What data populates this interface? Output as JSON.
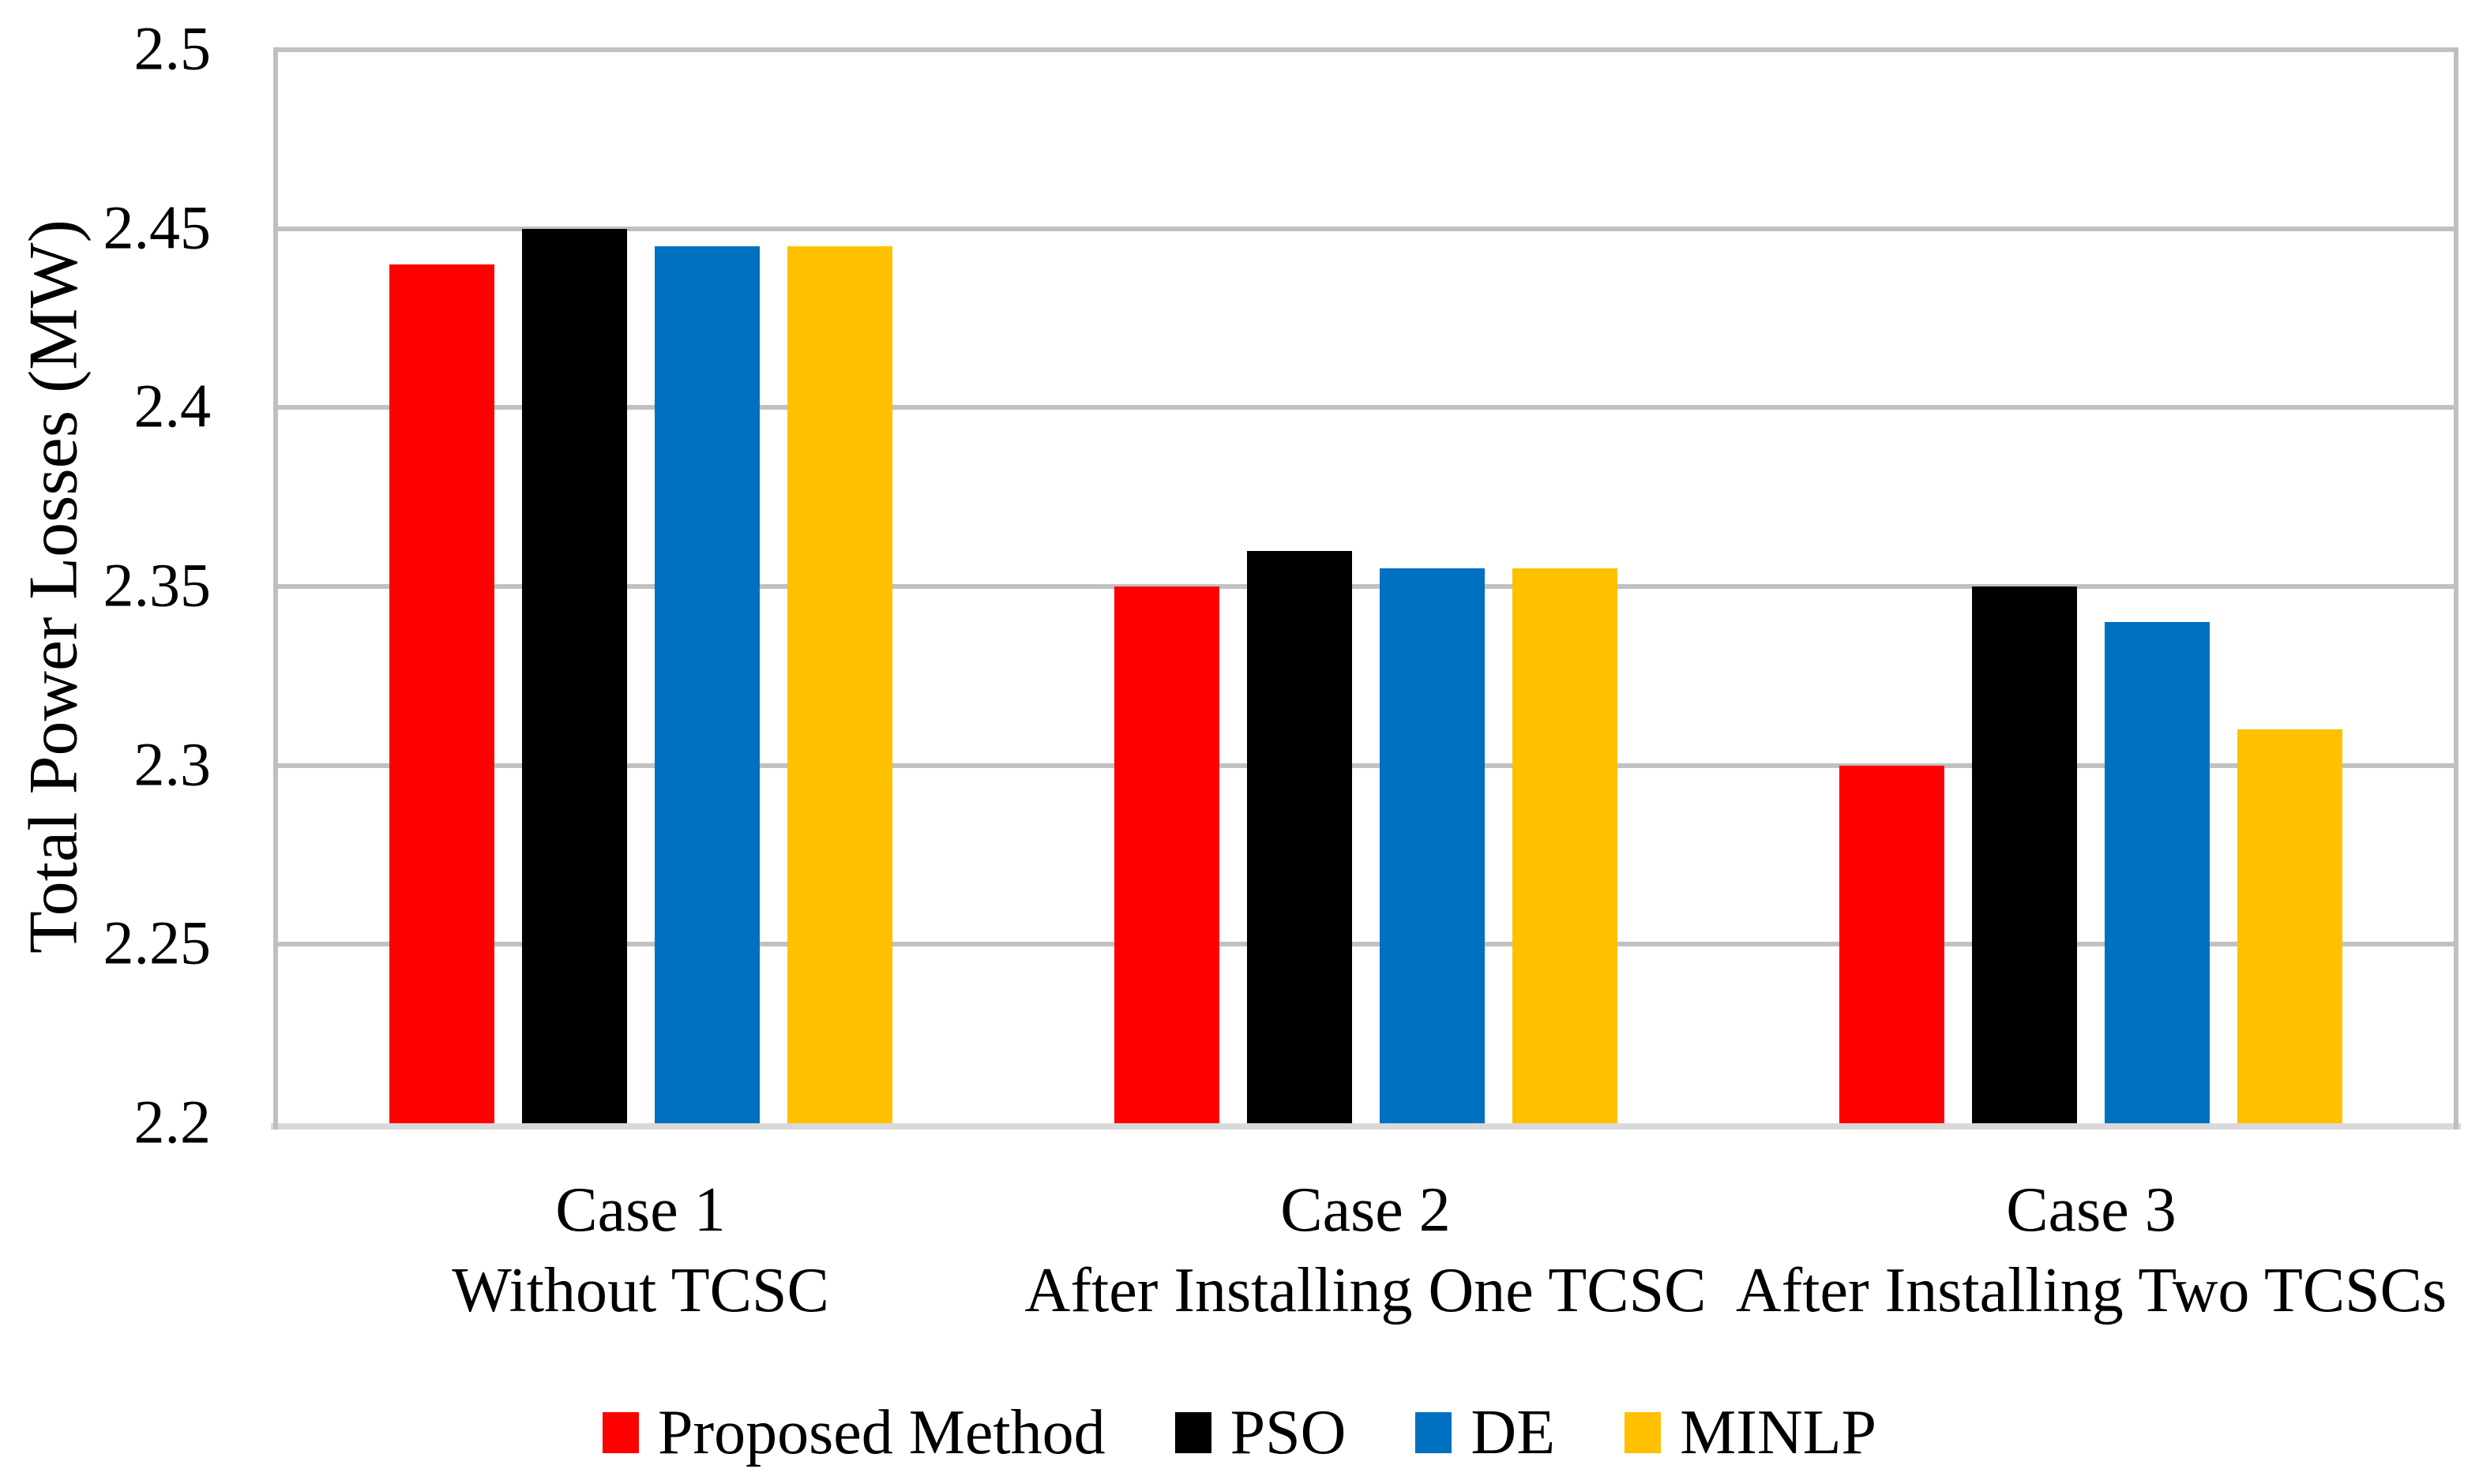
{
  "chart_data": {
    "type": "bar",
    "title": "",
    "xlabel": "",
    "ylabel": "Total Power Losses (MW)",
    "ylim": [
      2.2,
      2.5
    ],
    "ytick_step": 0.05,
    "yticks": [
      "2.5",
      "2.45",
      "2.4",
      "2.35",
      "2.3",
      "2.25",
      "2.2"
    ],
    "grid": true,
    "legend_position": "bottom-center",
    "categories": [
      {
        "label": "Case 1",
        "sublabel": "Without TCSC"
      },
      {
        "label": "Case 2",
        "sublabel": "After Installing One TCSC"
      },
      {
        "label": "Case 3",
        "sublabel": "After Installing Two TCSCs"
      }
    ],
    "series": [
      {
        "name": "Proposed Method",
        "color": "#FF0000",
        "values": [
          2.44,
          2.35,
          2.3
        ]
      },
      {
        "name": "PSO",
        "color": "#000000",
        "values": [
          2.45,
          2.36,
          2.35
        ]
      },
      {
        "name": "DE",
        "color": "#0070C0",
        "values": [
          2.445,
          2.355,
          2.34
        ]
      },
      {
        "name": "MINLP",
        "color": "#FFC000",
        "values": [
          2.445,
          2.355,
          2.31
        ]
      }
    ],
    "colors": {
      "background": "#FFFFFF",
      "gridline": "#C1C1C1",
      "plot_border": "#BFBFBF",
      "axis_line": "#D9D9D9",
      "text": "#000000"
    }
  }
}
